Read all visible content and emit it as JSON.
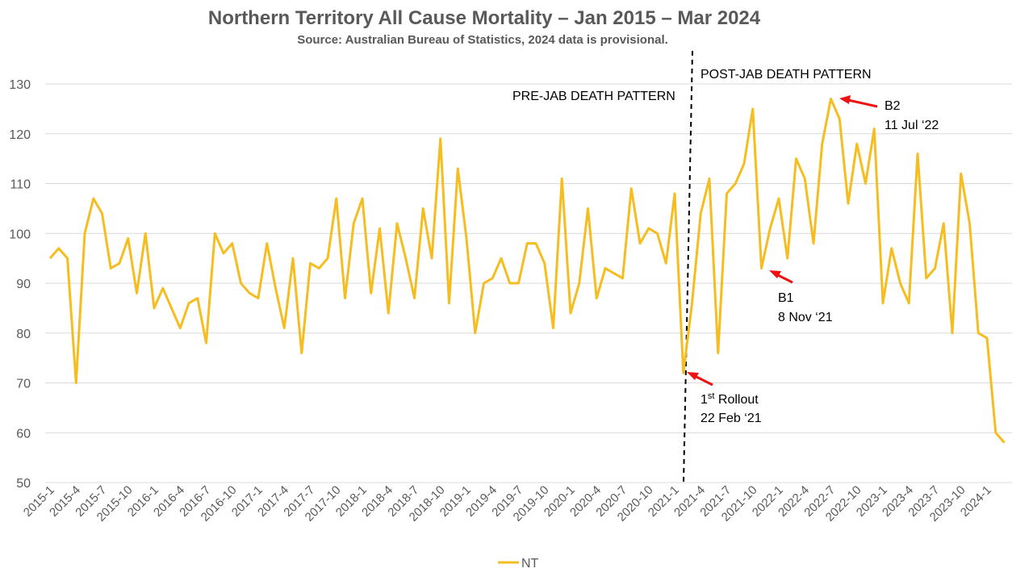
{
  "chart_data": {
    "type": "line",
    "title": "Northern Territory All Cause Mortality – Jan 2015 – Mar 2024",
    "subtitle": "Source: Australian Bureau of Statistics, 2024 data is provisional.",
    "xlabel": "",
    "ylabel": "",
    "ylim": [
      50,
      130
    ],
    "yticks": [
      50,
      60,
      70,
      80,
      90,
      100,
      110,
      120,
      130
    ],
    "grid": true,
    "legend_position": "bottom",
    "x_tick_labels": [
      "2015-1",
      "2015-4",
      "2015-7",
      "2015-10",
      "2016-1",
      "2016-4",
      "2016-7",
      "2016-10",
      "2017-1",
      "2017-4",
      "2017-7",
      "2017-10",
      "2018-1",
      "2018-4",
      "2018-7",
      "2018-10",
      "2019-1",
      "2019-4",
      "2019-7",
      "2019-10",
      "2020-1",
      "2020-4",
      "2020-7",
      "2020-10",
      "2021-1",
      "2021-4",
      "2021-7",
      "2021-10",
      "2022-1",
      "2022-4",
      "2022-7",
      "2022-10",
      "2023-1",
      "2023-4",
      "2023-7",
      "2023-10",
      "2024-1"
    ],
    "x_tick_every": 3,
    "series": [
      {
        "name": "NT",
        "color": "#f5bd1f",
        "start": "2015-1",
        "values": [
          95,
          97,
          95,
          70,
          100,
          107,
          104,
          93,
          94,
          99,
          88,
          100,
          85,
          89,
          85,
          81,
          86,
          87,
          78,
          100,
          96,
          98,
          90,
          88,
          87,
          98,
          89,
          81,
          95,
          76,
          94,
          93,
          95,
          107,
          87,
          102,
          107,
          88,
          101,
          84,
          102,
          95,
          87,
          105,
          95,
          119,
          86,
          113,
          99,
          80,
          90,
          91,
          95,
          90,
          90,
          98,
          98,
          94,
          81,
          111,
          84,
          90,
          105,
          87,
          93,
          92,
          91,
          109,
          98,
          101,
          100,
          94,
          108,
          72,
          86,
          104,
          111,
          76,
          108,
          110,
          114,
          125,
          93,
          101,
          107,
          95,
          115,
          111,
          98,
          118,
          127,
          123,
          106,
          118,
          110,
          121,
          86,
          97,
          90,
          86,
          116,
          91,
          93,
          102,
          80,
          112,
          102,
          80,
          79,
          60,
          58
        ]
      }
    ],
    "annotations": {
      "pre_label": "PRE-JAB DEATH PATTERN",
      "post_label": "POST-JAB DEATH PATTERN",
      "rollout_line1": "1",
      "rollout_sup": "st",
      "rollout_line1_rest": " Rollout",
      "rollout_line2": "22 Feb ‘21",
      "b1_line1": "B1",
      "b1_line2": "8 Nov ‘21",
      "b2_line1": "B2",
      "b2_line2": "11 Jul ‘22"
    },
    "colors": {
      "line": "#f5bd1f",
      "arrow": "#ee1111",
      "divider": "#000000"
    }
  }
}
